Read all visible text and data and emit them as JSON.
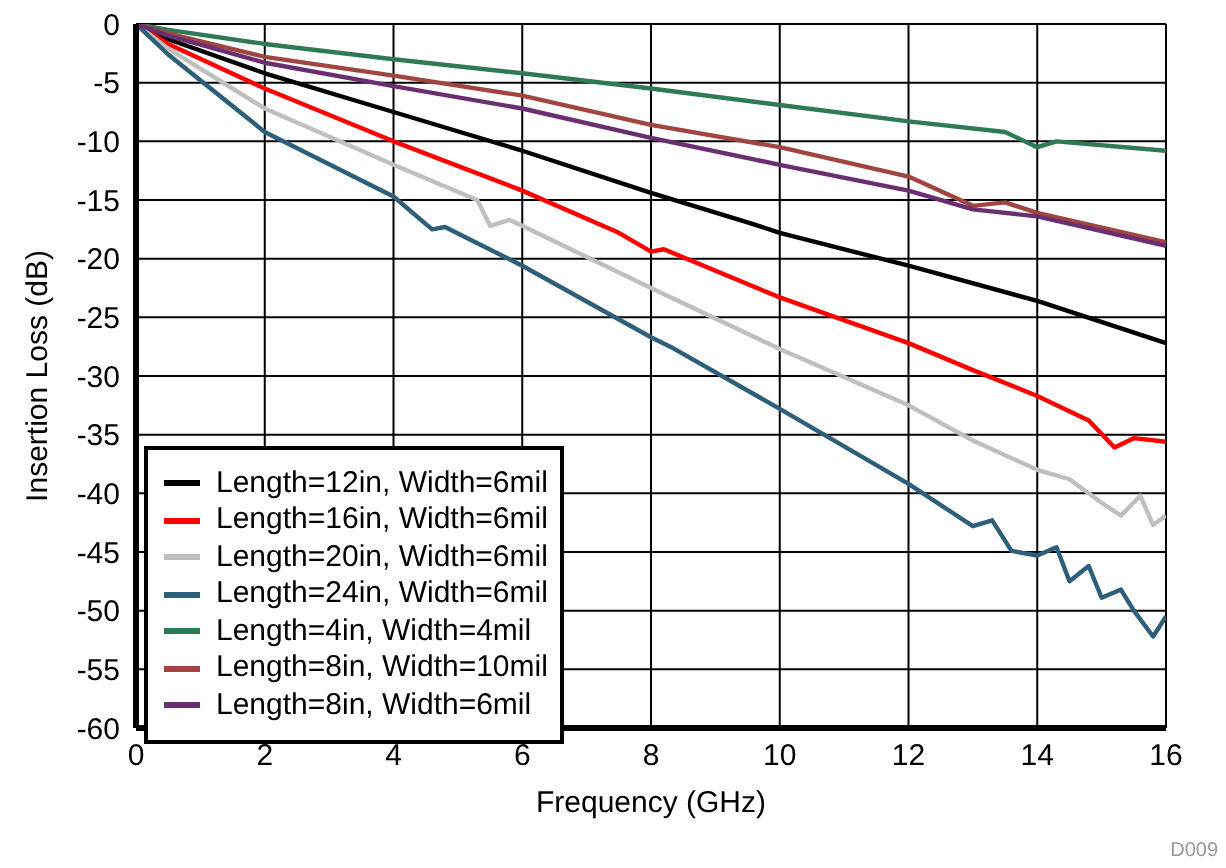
{
  "chart_data": {
    "type": "line",
    "xlabel": "Frequency (GHz)",
    "ylabel": "Insertion Loss (dB)",
    "xlim": [
      0,
      16
    ],
    "xticks": [
      0,
      2,
      4,
      6,
      8,
      10,
      12,
      14,
      16
    ],
    "ylim": [
      -60,
      0
    ],
    "yticks": [
      -60,
      -55,
      -50,
      -45,
      -40,
      -35,
      -30,
      -25,
      -20,
      -15,
      -10,
      -5,
      0
    ],
    "grid": true,
    "legend": "bottom left",
    "marker": "none",
    "line_style": "solid",
    "annotations": [
      "D009"
    ],
    "series": [
      {
        "name": "Length=12in, Width=6mil",
        "color": "#000000",
        "x": [
          0,
          0.5,
          2,
          4,
          6,
          8,
          9.5,
          10,
          12,
          14,
          16
        ],
        "values": [
          0,
          -1.3,
          -4.2,
          -7.5,
          -10.8,
          -14.4,
          -16.9,
          -17.8,
          -20.6,
          -23.6,
          -27.2
        ]
      },
      {
        "name": "Length=16in, Width=6mil",
        "color": "#ff0000",
        "x": [
          0,
          0.5,
          2,
          4,
          6,
          7.5,
          8,
          8.2,
          10,
          12,
          13,
          14,
          14.8,
          15.2,
          15.5,
          16
        ],
        "values": [
          0,
          -1.7,
          -5.5,
          -10,
          -14.2,
          -17.8,
          -19.4,
          -19.2,
          -23.3,
          -27.2,
          -29.5,
          -31.7,
          -33.8,
          -36.1,
          -35.3,
          -35.6
        ]
      },
      {
        "name": "Length=20in, Width=6mil",
        "color": "#bfbfbf",
        "x": [
          0,
          0.5,
          2,
          4,
          5.3,
          5.5,
          5.8,
          6,
          8,
          10,
          12,
          13,
          14,
          14.5,
          15,
          15.3,
          15.6,
          15.8,
          16
        ],
        "values": [
          0,
          -2.1,
          -7.2,
          -12,
          -15,
          -17.2,
          -16.7,
          -17.2,
          -22.5,
          -27.7,
          -32.5,
          -35.5,
          -38,
          -38.8,
          -40.8,
          -41.9,
          -40.2,
          -42.7,
          -41.9
        ]
      },
      {
        "name": "Length=24in, Width=6mil",
        "color": "#2e5f7a",
        "x": [
          0,
          0.5,
          2,
          4,
          4.6,
          4.8,
          6,
          8,
          8.3,
          10,
          12,
          13,
          13.3,
          13.6,
          14,
          14.3,
          14.5,
          14.8,
          15,
          15.3,
          15.5,
          15.8,
          16
        ],
        "values": [
          0,
          -2.6,
          -9.2,
          -14.7,
          -17.5,
          -17.3,
          -20.6,
          -26.7,
          -27.5,
          -32.8,
          -39.2,
          -42.8,
          -42.3,
          -44.9,
          -45.3,
          -44.6,
          -47.5,
          -46.2,
          -48.9,
          -48.2,
          -50,
          -52.2,
          -50.5
        ]
      },
      {
        "name": "Length=4in, Width=4mil",
        "color": "#2e7a55",
        "x": [
          0,
          0.5,
          2,
          4,
          6,
          8,
          10,
          12,
          13.5,
          14,
          14.3,
          16
        ],
        "values": [
          0,
          -0.5,
          -1.7,
          -3,
          -4.2,
          -5.5,
          -6.9,
          -8.3,
          -9.2,
          -10.5,
          -10,
          -10.8
        ]
      },
      {
        "name": "Length=8in, Width=10mil",
        "color": "#a0453f",
        "x": [
          0,
          0.5,
          2,
          4,
          6,
          8,
          10,
          12,
          13,
          13.5,
          14,
          16
        ],
        "values": [
          0,
          -0.8,
          -2.8,
          -4.4,
          -6.1,
          -8.6,
          -10.5,
          -13,
          -15.5,
          -15.2,
          -16.1,
          -18.6
        ]
      },
      {
        "name": "Length=8in, Width=6mil",
        "color": "#6a2f73",
        "x": [
          0,
          0.5,
          2,
          4,
          6,
          8,
          10,
          12,
          13,
          14,
          16
        ],
        "values": [
          0,
          -1,
          -3.3,
          -5.3,
          -7.2,
          -9.7,
          -12,
          -14.2,
          -15.8,
          -16.4,
          -18.9
        ]
      }
    ]
  }
}
